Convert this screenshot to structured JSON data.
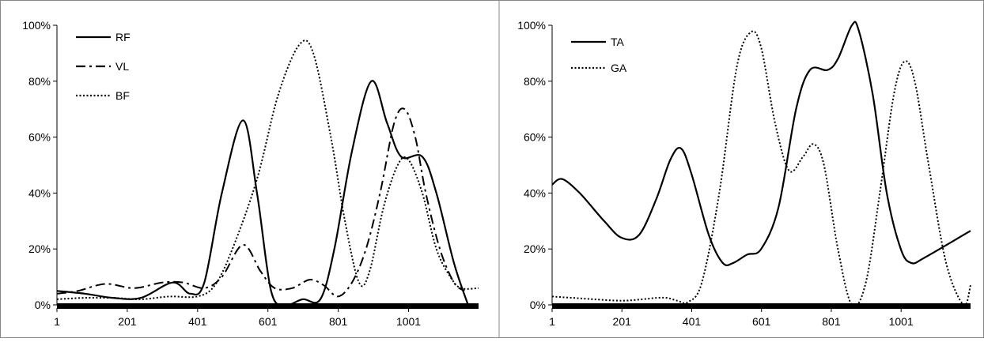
{
  "chart_data": [
    {
      "type": "line",
      "title": "",
      "xlabel": "",
      "ylabel": "",
      "xlim": [
        1,
        1200
      ],
      "ylim": [
        0,
        100
      ],
      "x_ticks": [
        1,
        201,
        401,
        601,
        801,
        1001
      ],
      "y_ticks": [
        0,
        20,
        40,
        60,
        80,
        100
      ],
      "y_tick_suffix": "%",
      "grid": false,
      "legend_position": "top-left",
      "series": [
        {
          "name": "RF",
          "style": "solid",
          "points": [
            [
              1,
              5
            ],
            [
              80,
              4
            ],
            [
              160,
              2.5
            ],
            [
              240,
              2.5
            ],
            [
              330,
              8
            ],
            [
              380,
              4
            ],
            [
              420,
              8
            ],
            [
              470,
              40
            ],
            [
              530,
              66
            ],
            [
              570,
              40
            ],
            [
              610,
              5
            ],
            [
              650,
              0
            ],
            [
              700,
              2
            ],
            [
              750,
              2
            ],
            [
              790,
              20
            ],
            [
              840,
              55
            ],
            [
              895,
              80
            ],
            [
              940,
              65
            ],
            [
              980,
              53
            ],
            [
              1040,
              53
            ],
            [
              1080,
              40
            ],
            [
              1130,
              15
            ],
            [
              1170,
              0
            ]
          ]
        },
        {
          "name": "VL",
          "style": "dashdot",
          "points": [
            [
              1,
              4
            ],
            [
              60,
              5
            ],
            [
              140,
              7.5
            ],
            [
              220,
              6
            ],
            [
              300,
              8
            ],
            [
              360,
              8
            ],
            [
              420,
              6
            ],
            [
              470,
              10
            ],
            [
              530,
              21.5
            ],
            [
              580,
              12
            ],
            [
              620,
              6
            ],
            [
              670,
              6
            ],
            [
              720,
              9
            ],
            [
              760,
              7
            ],
            [
              800,
              3
            ],
            [
              840,
              8
            ],
            [
              880,
              20
            ],
            [
              920,
              40
            ],
            [
              960,
              65
            ],
            [
              990,
              70
            ],
            [
              1020,
              60
            ],
            [
              1050,
              40
            ],
            [
              1090,
              20
            ],
            [
              1130,
              8
            ],
            [
              1160,
              5
            ]
          ]
        },
        {
          "name": "BF",
          "style": "dotted",
          "points": [
            [
              1,
              2
            ],
            [
              80,
              2.5
            ],
            [
              160,
              2.5
            ],
            [
              240,
              2
            ],
            [
              320,
              3
            ],
            [
              400,
              3
            ],
            [
              450,
              7
            ],
            [
              500,
              20
            ],
            [
              570,
              45
            ],
            [
              630,
              75
            ],
            [
              690,
              93
            ],
            [
              730,
              90
            ],
            [
              780,
              60
            ],
            [
              820,
              30
            ],
            [
              860,
              8
            ],
            [
              890,
              12
            ],
            [
              930,
              35
            ],
            [
              970,
              50
            ],
            [
              1000,
              52
            ],
            [
              1040,
              40
            ],
            [
              1080,
              20
            ],
            [
              1120,
              10
            ],
            [
              1150,
              6
            ],
            [
              1200,
              6
            ]
          ]
        }
      ]
    },
    {
      "type": "line",
      "title": "",
      "xlabel": "",
      "ylabel": "",
      "xlim": [
        1,
        1200
      ],
      "ylim": [
        0,
        100
      ],
      "x_ticks": [
        1,
        201,
        401,
        601,
        801,
        1001
      ],
      "y_ticks": [
        0,
        20,
        40,
        60,
        80,
        100
      ],
      "y_tick_suffix": "%",
      "grid": false,
      "legend_position": "top-left",
      "series": [
        {
          "name": "TA",
          "style": "solid",
          "points": [
            [
              1,
              43
            ],
            [
              30,
              45
            ],
            [
              80,
              40
            ],
            [
              150,
              30
            ],
            [
              200,
              24
            ],
            [
              250,
              25
            ],
            [
              300,
              38
            ],
            [
              340,
              52
            ],
            [
              370,
              56
            ],
            [
              400,
              47
            ],
            [
              450,
              25
            ],
            [
              490,
              15
            ],
            [
              520,
              15
            ],
            [
              560,
              18
            ],
            [
              600,
              20
            ],
            [
              650,
              35
            ],
            [
              700,
              70
            ],
            [
              740,
              84
            ],
            [
              790,
              84
            ],
            [
              820,
              88
            ],
            [
              860,
              100
            ],
            [
              880,
              98
            ],
            [
              920,
              75
            ],
            [
              960,
              40
            ],
            [
              1000,
              20
            ],
            [
              1030,
              15
            ],
            [
              1070,
              17
            ],
            [
              1200,
              26.5
            ]
          ]
        },
        {
          "name": "GA",
          "style": "dotted",
          "points": [
            [
              1,
              3
            ],
            [
              60,
              2.5
            ],
            [
              120,
              2
            ],
            [
              200,
              1.5
            ],
            [
              260,
              2
            ],
            [
              300,
              2.5
            ],
            [
              330,
              2.5
            ],
            [
              360,
              1.5
            ],
            [
              390,
              1
            ],
            [
              430,
              8
            ],
            [
              480,
              40
            ],
            [
              530,
              85
            ],
            [
              570,
              97.5
            ],
            [
              600,
              92
            ],
            [
              640,
              65
            ],
            [
              680,
              48
            ],
            [
              720,
              53
            ],
            [
              750,
              57.5
            ],
            [
              780,
              50
            ],
            [
              820,
              20
            ],
            [
              860,
              0
            ],
            [
              900,
              8
            ],
            [
              940,
              40
            ],
            [
              980,
              75
            ],
            [
              1010,
              87
            ],
            [
              1040,
              80
            ],
            [
              1080,
              50
            ],
            [
              1130,
              15
            ],
            [
              1180,
              0
            ],
            [
              1200,
              7
            ]
          ]
        }
      ]
    }
  ]
}
